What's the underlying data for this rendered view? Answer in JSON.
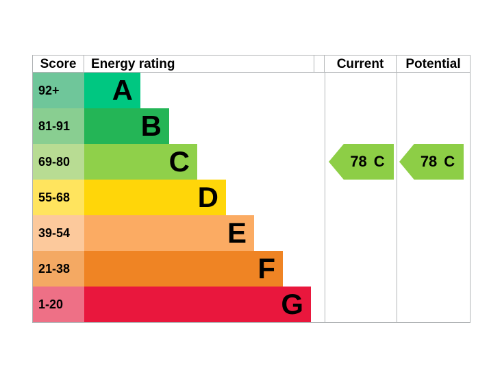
{
  "header": {
    "score": "Score",
    "energy_rating": "Energy rating",
    "current": "Current",
    "potential": "Potential"
  },
  "chart_data": {
    "type": "table",
    "title": "EPC energy efficiency rating chart",
    "columns": [
      "Score",
      "Energy rating",
      "Current",
      "Potential"
    ],
    "bands": [
      {
        "letter": "A",
        "score_range": "92+",
        "band_color": "#00c781",
        "score_color": "#6fc69a"
      },
      {
        "letter": "B",
        "score_range": "81-91",
        "band_color": "#24b556",
        "score_color": "#89ce91"
      },
      {
        "letter": "C",
        "score_range": "69-80",
        "band_color": "#8fd04a",
        "score_color": "#b8dc93"
      },
      {
        "letter": "D",
        "score_range": "55-68",
        "band_color": "#ffd609",
        "score_color": "#ffe45e"
      },
      {
        "letter": "E",
        "score_range": "39-54",
        "band_color": "#fbab63",
        "score_color": "#fcc99c"
      },
      {
        "letter": "F",
        "score_range": "21-38",
        "band_color": "#ef8424",
        "score_color": "#f4a963"
      },
      {
        "letter": "G",
        "score_range": "1-20",
        "band_color": "#e9173d",
        "score_color": "#ee7086"
      }
    ],
    "ratings": {
      "current": {
        "value": "78",
        "band": "C"
      },
      "potential": {
        "value": "78",
        "band": "C"
      }
    },
    "arrow_color": "#8dce46",
    "border_color": "#b1b4b6",
    "legend_position": "none",
    "grid": false
  }
}
